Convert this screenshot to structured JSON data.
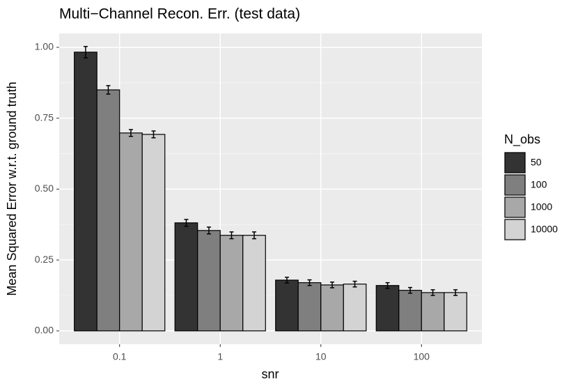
{
  "chart_data": {
    "type": "bar",
    "title": "Multi−Channel Recon. Err. (test data)",
    "x_label": "snr",
    "y_label": "Mean Squared Error w.r.t. ground truth",
    "categories": [
      "0.1",
      "1",
      "10",
      "100"
    ],
    "legend_title": "N_obs",
    "legend_position": "right",
    "series": [
      {
        "name": "50",
        "color": "#333333",
        "values": [
          0.983,
          0.381,
          0.179,
          0.16
        ],
        "errors": [
          0.02,
          0.012,
          0.01,
          0.01
        ]
      },
      {
        "name": "100",
        "color": "#7f7f7f",
        "values": [
          0.85,
          0.354,
          0.17,
          0.143
        ],
        "errors": [
          0.015,
          0.012,
          0.01,
          0.01
        ]
      },
      {
        "name": "1000",
        "color": "#a8a8a8",
        "values": [
          0.698,
          0.337,
          0.162,
          0.135
        ],
        "errors": [
          0.012,
          0.012,
          0.01,
          0.01
        ]
      },
      {
        "name": "10000",
        "color": "#d3d3d3",
        "values": [
          0.693,
          0.337,
          0.165,
          0.135
        ],
        "errors": [
          0.012,
          0.012,
          0.01,
          0.01
        ]
      }
    ],
    "ylim": [
      -0.047,
      1.049
    ],
    "yticks": [
      {
        "value": 0,
        "label": "0.00"
      },
      {
        "value": 0.25,
        "label": "0.25"
      },
      {
        "value": 0.5,
        "label": "0.50"
      },
      {
        "value": 0.75,
        "label": "0.75"
      },
      {
        "value": 1,
        "label": "1.00"
      }
    ],
    "yminor": [
      0.125,
      0.375,
      0.625,
      0.875
    ],
    "grid": true
  }
}
